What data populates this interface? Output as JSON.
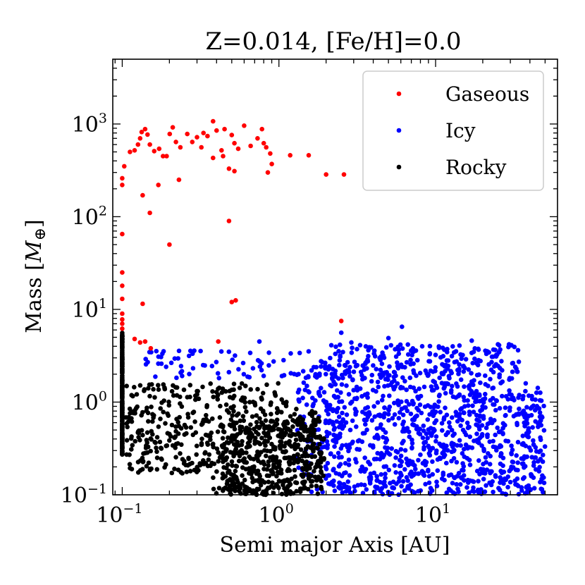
{
  "chart_data": {
    "type": "scatter",
    "title": "Z=0.014, [Fe/H]=0.0",
    "xlabel": "Semi major Axis [AU]",
    "ylabel_text": "Mass [",
    "ylabel_math": "M",
    "ylabel_sub": "⊕",
    "ylabel_end": "]",
    "xscale": "log",
    "yscale": "log",
    "xlim": [
      0.087,
      60
    ],
    "ylim": [
      0.1,
      5000
    ],
    "x_ticks": [
      {
        "value": 0.1,
        "base": "10",
        "exp": "−1"
      },
      {
        "value": 1,
        "base": "10",
        "exp": "0"
      },
      {
        "value": 10,
        "base": "10",
        "exp": "1"
      }
    ],
    "y_ticks": [
      {
        "value": 0.1,
        "base": "10",
        "exp": "−1"
      },
      {
        "value": 1,
        "base": "10",
        "exp": "0"
      },
      {
        "value": 10,
        "base": "10",
        "exp": "1"
      },
      {
        "value": 100,
        "base": "10",
        "exp": "2"
      },
      {
        "value": 1000,
        "base": "10",
        "exp": "3"
      }
    ],
    "grid": false,
    "legend_position": "top-right",
    "series": [
      {
        "name": "Gaseous",
        "color": "#ff0000",
        "points": [
          [
            0.103,
            350
          ],
          [
            0.112,
            500
          ],
          [
            0.12,
            520
          ],
          [
            0.126,
            600
          ],
          [
            0.13,
            700
          ],
          [
            0.133,
            820
          ],
          [
            0.14,
            880
          ],
          [
            0.145,
            770
          ],
          [
            0.15,
            600
          ],
          [
            0.16,
            510
          ],
          [
            0.172,
            540
          ],
          [
            0.182,
            450
          ],
          [
            0.192,
            450
          ],
          [
            0.201,
            780
          ],
          [
            0.21,
            920
          ],
          [
            0.22,
            640
          ],
          [
            0.235,
            560
          ],
          [
            0.26,
            780
          ],
          [
            0.28,
            640
          ],
          [
            0.3,
            720
          ],
          [
            0.33,
            800
          ],
          [
            0.35,
            740
          ],
          [
            0.38,
            1070
          ],
          [
            0.4,
            850
          ],
          [
            0.43,
            520
          ],
          [
            0.45,
            880
          ],
          [
            0.5,
            760
          ],
          [
            0.52,
            620
          ],
          [
            0.55,
            540
          ],
          [
            0.6,
            960
          ],
          [
            0.66,
            580
          ],
          [
            0.73,
            700
          ],
          [
            0.78,
            880
          ],
          [
            0.8,
            620
          ],
          [
            0.83,
            560
          ],
          [
            0.88,
            480
          ],
          [
            1.18,
            460
          ],
          [
            1.55,
            460
          ],
          [
            0.32,
            560
          ],
          [
            0.38,
            430
          ],
          [
            0.44,
            450
          ],
          [
            0.48,
            330
          ],
          [
            0.52,
            310
          ],
          [
            0.85,
            300
          ],
          [
            0.9,
            370
          ],
          [
            2.0,
            285
          ],
          [
            2.6,
            285
          ],
          [
            0.1,
            260
          ],
          [
            0.1,
            220
          ],
          [
            0.135,
            170
          ],
          [
            0.15,
            110
          ],
          [
            0.17,
            220
          ],
          [
            0.23,
            250
          ],
          [
            0.48,
            90
          ],
          [
            0.2,
            50
          ],
          [
            0.1,
            65
          ],
          [
            0.1,
            25
          ],
          [
            0.1,
            18
          ],
          [
            0.1,
            13
          ],
          [
            0.1,
            9
          ],
          [
            0.1,
            7.8
          ],
          [
            0.1,
            7
          ],
          [
            0.1,
            6.2
          ],
          [
            0.135,
            11.5
          ],
          [
            0.53,
            12.5
          ],
          [
            0.5,
            12
          ],
          [
            2.5,
            7.5
          ],
          [
            0.41,
            4.5
          ],
          [
            0.12,
            4.8
          ],
          [
            0.13,
            4.4
          ],
          [
            0.14,
            4.5
          ],
          [
            0.152,
            3.8
          ]
        ]
      },
      {
        "name": "Icy",
        "color": "#0000ff",
        "points": [],
        "generated": {
          "count": 1350,
          "xrange": [
            0.14,
            50
          ],
          "yrange": [
            0.1,
            6.7
          ],
          "seed": 7
        }
      },
      {
        "name": "Rocky",
        "color": "#000000",
        "points": [],
        "generated": {
          "count": 1150,
          "xrange": [
            0.1,
            1.95
          ],
          "yrange": [
            0.1,
            1.6
          ],
          "seed": 13
        }
      }
    ]
  }
}
